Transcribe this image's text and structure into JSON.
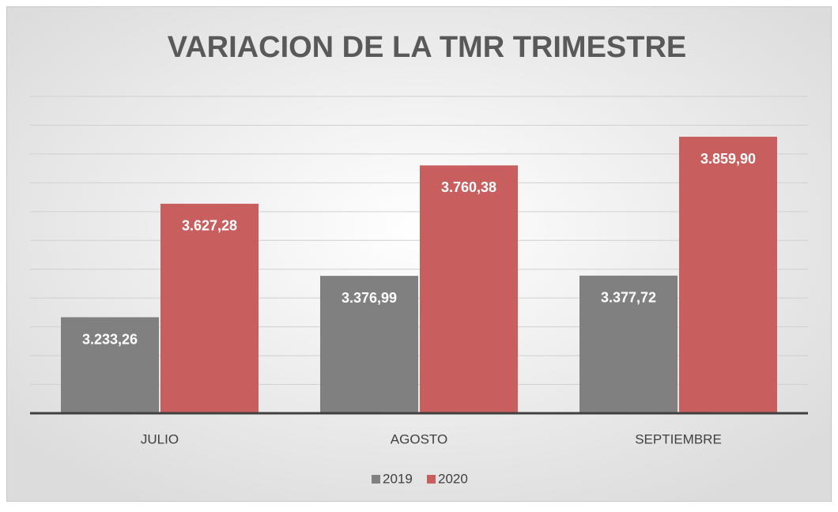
{
  "chart_data": {
    "type": "bar",
    "title": "VARIACION DE LA TMR TRIMESTRE",
    "categories": [
      "JULIO",
      "AGOSTO",
      "SEPTIEMBRE"
    ],
    "series": [
      {
        "name": "2019",
        "color": "#808080",
        "values": [
          3233.26,
          3376.99,
          3377.72
        ],
        "value_labels": [
          "3.233,26",
          "3.376,99",
          "3.377,72"
        ]
      },
      {
        "name": "2020",
        "color": "#c85e5e",
        "values": [
          3627.28,
          3760.38,
          3859.9
        ],
        "value_labels": [
          "3.627,28",
          "3.760,38",
          "3.859,90"
        ]
      }
    ],
    "ylim": [
      2900,
      4000
    ],
    "yticks": [
      2900,
      3000,
      3100,
      3200,
      3300,
      3400,
      3500,
      3600,
      3700,
      3800,
      3900,
      4000
    ],
    "grid": true,
    "legend": "bottom"
  }
}
